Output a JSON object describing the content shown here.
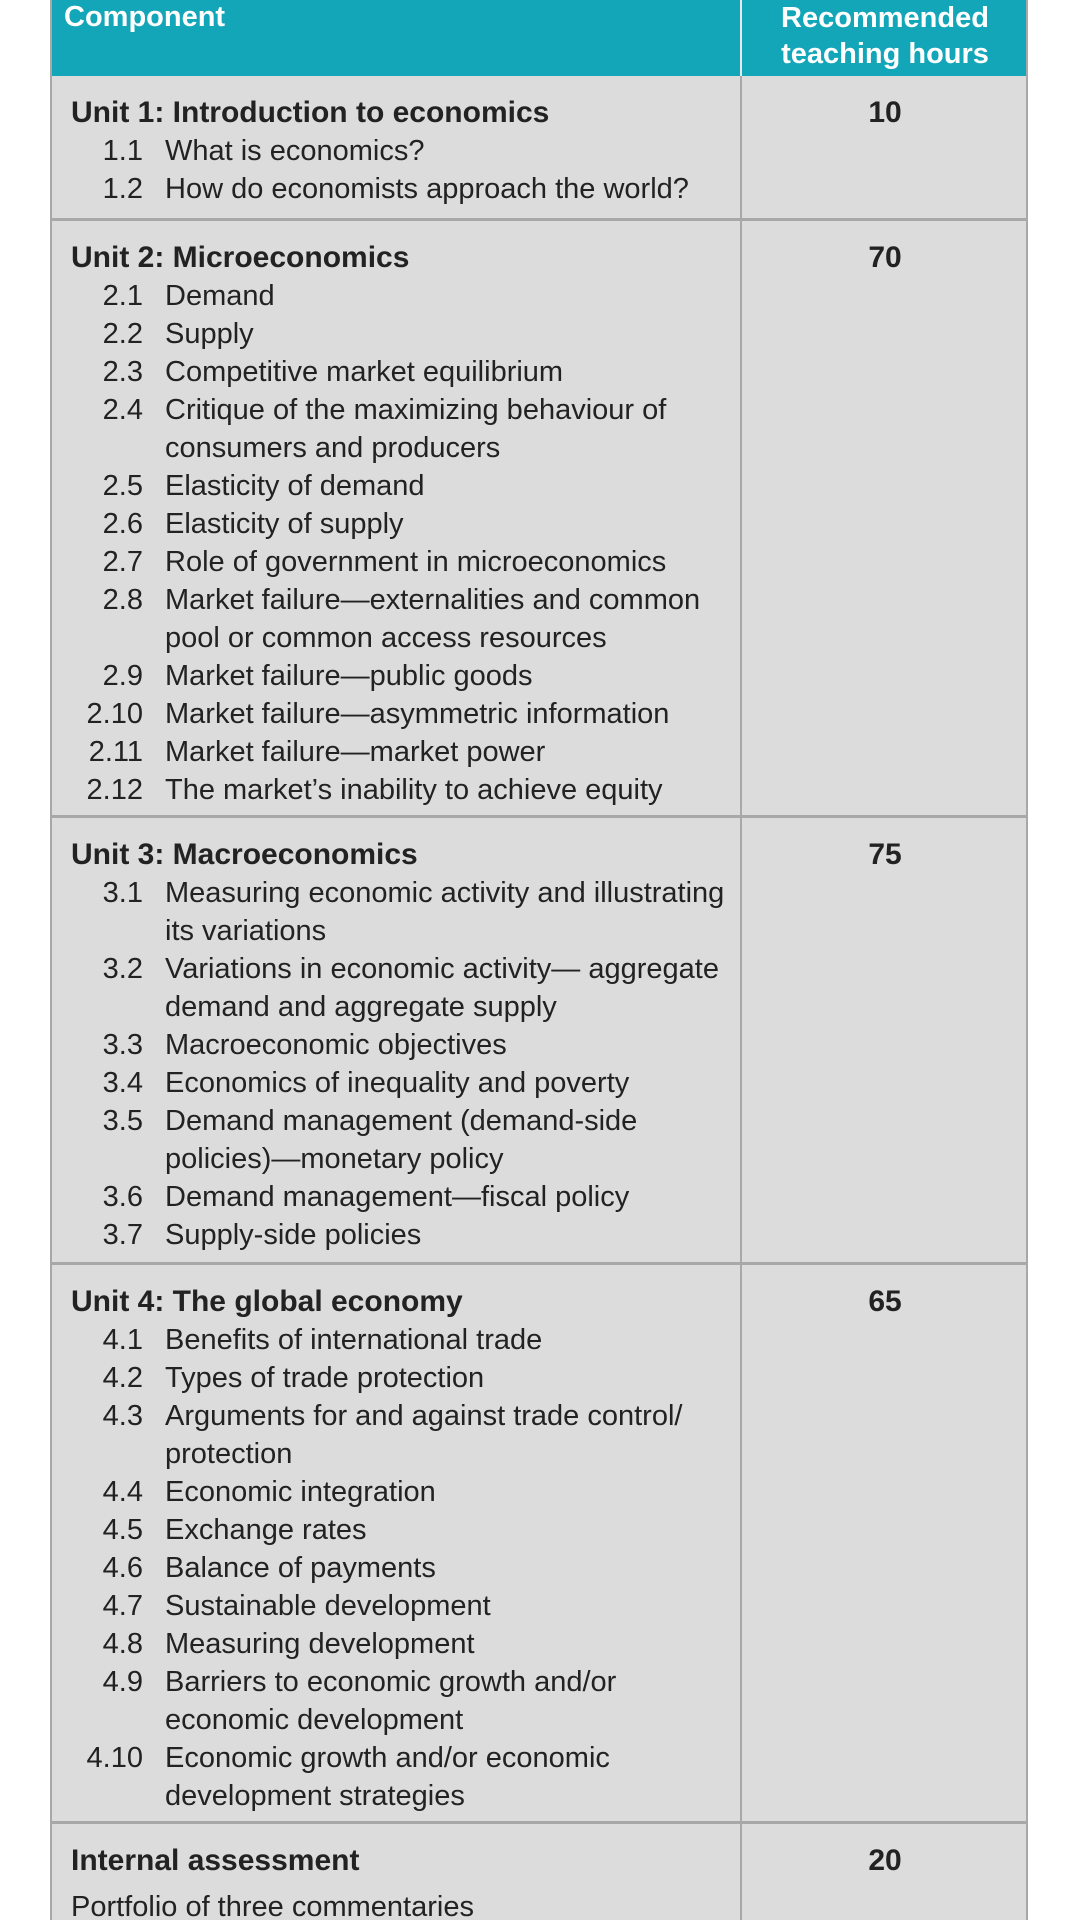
{
  "header": {
    "component_label": "Component",
    "hours_label_line1": "Recommended",
    "hours_label_line2": "teaching hours"
  },
  "units": [
    {
      "title": "Unit 1: Introduction to economics",
      "hours": "10",
      "items": [
        {
          "num": "1.1",
          "text": "What is economics?"
        },
        {
          "num": "1.2",
          "text": "How do economists approach the world?"
        }
      ]
    },
    {
      "title": "Unit  2: Microeconomics",
      "hours": "70",
      "items": [
        {
          "num": "2.1",
          "text": "Demand"
        },
        {
          "num": "2.2",
          "text": "Supply"
        },
        {
          "num": "2.3",
          "text": "Competitive market equilibrium"
        },
        {
          "num": "2.4",
          "text": "Critique of the maximizing behaviour of consumers and producers"
        },
        {
          "num": "2.5",
          "text": "Elasticity of demand"
        },
        {
          "num": "2.6",
          "text": "Elasticity of supply"
        },
        {
          "num": "2.7",
          "text": "Role of government in microeconomics"
        },
        {
          "num": "2.8",
          "text": "Market failure—externalities and common pool or common access resources"
        },
        {
          "num": "2.9",
          "text": "Market failure—public goods"
        },
        {
          "num": "2.10",
          "text": "Market failure—asymmetric information"
        },
        {
          "num": "2.11",
          "text": "Market failure—market power"
        },
        {
          "num": "2.12",
          "text": "The market’s inability to achieve equity"
        }
      ]
    },
    {
      "title": "Unit 3: Macroeconomics",
      "hours": "75",
      "items": [
        {
          "num": "3.1",
          "text": "Measuring economic activity and illustrating its variations"
        },
        {
          "num": "3.2",
          "text": "Variations in economic activity— aggregate demand and aggregate supply"
        },
        {
          "num": "3.3",
          "text": "Macroeconomic objectives"
        },
        {
          "num": "3.4",
          "text": "Economics of inequality and poverty"
        },
        {
          "num": "3.5",
          "text": "Demand management (demand-side policies)—monetary policy"
        },
        {
          "num": "3.6",
          "text": "Demand management—fiscal policy"
        },
        {
          "num": "3.7",
          "text": "Supply-side policies"
        }
      ]
    },
    {
      "title": "Unit 4: The global economy",
      "hours": "65",
      "items": [
        {
          "num": "4.1",
          "text": "Benefits of international trade"
        },
        {
          "num": "4.2",
          "text": "Types of trade protection"
        },
        {
          "num": "4.3",
          "text": "Arguments for and against trade control/ protection"
        },
        {
          "num": "4.4",
          "text": "Economic integration"
        },
        {
          "num": "4.5",
          "text": "Exchange rates"
        },
        {
          "num": "4.6",
          "text": "Balance of payments"
        },
        {
          "num": "4.7",
          "text": "Sustainable development"
        },
        {
          "num": "4.8",
          "text": "Measuring development"
        },
        {
          "num": "4.9",
          "text": "Barriers to economic growth and/or economic development"
        },
        {
          "num": "4.10",
          "text": "Economic growth and/or economic development strategies"
        }
      ]
    }
  ],
  "internal_assessment": {
    "title": "Internal assessment",
    "hours": "20",
    "description": "Portfolio of three commentaries"
  }
}
